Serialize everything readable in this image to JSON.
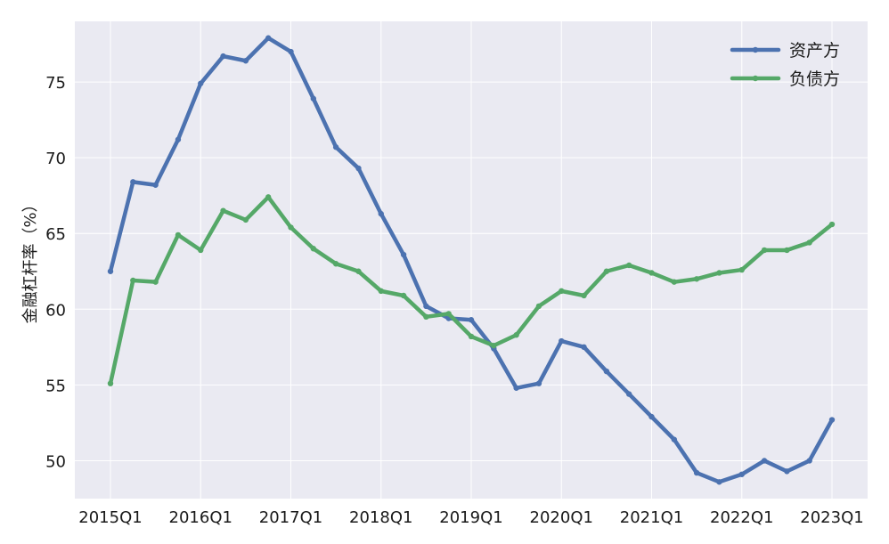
{
  "chart_data": {
    "type": "line",
    "title": "",
    "xlabel": "",
    "ylabel": "金融杠杆率（%）",
    "ylim": [
      47.5,
      79
    ],
    "yticks": [
      50,
      55,
      60,
      65,
      70,
      75
    ],
    "ytick_labels": [
      "50",
      "55",
      "60",
      "65",
      "70",
      "75"
    ],
    "xticks": [
      "2015Q1",
      "2016Q1",
      "2017Q1",
      "2018Q1",
      "2019Q1",
      "2020Q1",
      "2021Q1",
      "2022Q1",
      "2023Q1"
    ],
    "grid": true,
    "legend_position": "top-right",
    "x": [
      "2015Q1",
      "2015Q2",
      "2015Q3",
      "2015Q4",
      "2016Q1",
      "2016Q2",
      "2016Q3",
      "2016Q4",
      "2017Q1",
      "2017Q2",
      "2017Q3",
      "2017Q4",
      "2018Q1",
      "2018Q2",
      "2018Q3",
      "2018Q4",
      "2019Q1",
      "2019Q2",
      "2019Q3",
      "2019Q4",
      "2020Q1",
      "2020Q2",
      "2020Q3",
      "2020Q4",
      "2021Q1",
      "2021Q2",
      "2021Q3",
      "2021Q4",
      "2022Q1",
      "2022Q2",
      "2022Q3",
      "2022Q4",
      "2023Q1"
    ],
    "series": [
      {
        "name": "资产方",
        "color": "#4c72b0",
        "values": [
          62.5,
          68.4,
          68.2,
          71.2,
          74.9,
          76.7,
          76.4,
          77.9,
          77.0,
          73.9,
          70.7,
          69.3,
          66.3,
          63.6,
          60.2,
          59.4,
          59.3,
          57.4,
          54.8,
          55.1,
          57.9,
          57.5,
          55.9,
          54.4,
          52.9,
          51.4,
          49.2,
          48.6,
          49.1,
          50.0,
          49.3,
          50.0,
          52.7
        ]
      },
      {
        "name": "负债方",
        "color": "#55a868",
        "values": [
          55.1,
          61.9,
          61.8,
          64.9,
          63.9,
          66.5,
          65.9,
          67.4,
          65.4,
          64.0,
          63.0,
          62.5,
          61.2,
          60.9,
          59.5,
          59.7,
          58.2,
          57.6,
          58.3,
          60.2,
          61.2,
          60.9,
          62.5,
          62.9,
          62.4,
          61.8,
          62.0,
          62.4,
          62.6,
          63.9,
          63.9,
          64.4,
          65.6
        ]
      }
    ]
  }
}
